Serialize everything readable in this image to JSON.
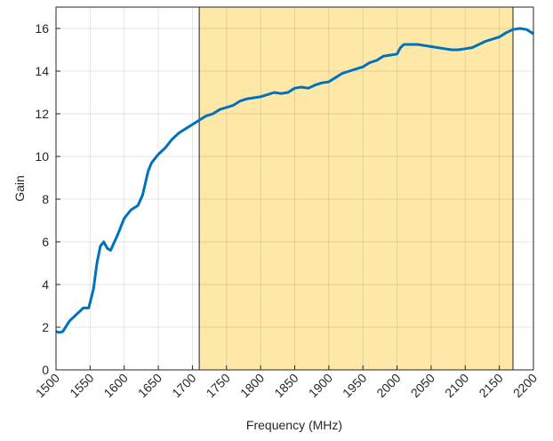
{
  "chart_data": {
    "type": "line",
    "xlabel": "Frequency (MHz)",
    "ylabel": "Gain",
    "x": [
      1500,
      1505,
      1510,
      1520,
      1530,
      1540,
      1548,
      1555,
      1560,
      1565,
      1570,
      1575,
      1580,
      1590,
      1600,
      1610,
      1620,
      1627,
      1635,
      1640,
      1650,
      1660,
      1670,
      1680,
      1690,
      1700,
      1710,
      1720,
      1730,
      1740,
      1750,
      1760,
      1770,
      1780,
      1790,
      1800,
      1810,
      1820,
      1830,
      1840,
      1850,
      1860,
      1870,
      1880,
      1890,
      1900,
      1910,
      1920,
      1930,
      1940,
      1950,
      1960,
      1970,
      1980,
      1990,
      2000,
      2005,
      2010,
      2020,
      2030,
      2040,
      2050,
      2060,
      2070,
      2080,
      2090,
      2100,
      2110,
      2120,
      2130,
      2140,
      2150,
      2160,
      2170,
      2180,
      2190,
      2200
    ],
    "values": [
      1.8,
      1.75,
      1.8,
      2.3,
      2.6,
      2.9,
      2.9,
      3.8,
      5.0,
      5.8,
      6.0,
      5.7,
      5.6,
      6.3,
      7.1,
      7.5,
      7.7,
      8.2,
      9.3,
      9.7,
      10.1,
      10.4,
      10.8,
      11.1,
      11.3,
      11.5,
      11.7,
      11.9,
      12.0,
      12.2,
      12.3,
      12.4,
      12.6,
      12.7,
      12.75,
      12.8,
      12.9,
      13.0,
      12.95,
      13.0,
      13.2,
      13.25,
      13.2,
      13.35,
      13.45,
      13.5,
      13.7,
      13.9,
      14.0,
      14.1,
      14.2,
      14.4,
      14.5,
      14.7,
      14.75,
      14.8,
      15.1,
      15.25,
      15.25,
      15.25,
      15.2,
      15.15,
      15.1,
      15.05,
      15.0,
      15.0,
      15.05,
      15.1,
      15.25,
      15.4,
      15.5,
      15.6,
      15.8,
      15.95,
      16.0,
      15.95,
      15.75
    ],
    "color": "#0072bd",
    "shaded_region": [
      1710,
      2170
    ],
    "shaded_color": "#fde8a8",
    "xlim": [
      1500,
      2200
    ],
    "xticks": [
      1500,
      1550,
      1600,
      1650,
      1700,
      1750,
      1800,
      1850,
      1900,
      1950,
      2000,
      2050,
      2100,
      2150,
      2200
    ],
    "ylim": [
      0,
      17
    ],
    "yticks": [
      0,
      2,
      4,
      6,
      8,
      10,
      12,
      14,
      16
    ],
    "grid": true
  }
}
